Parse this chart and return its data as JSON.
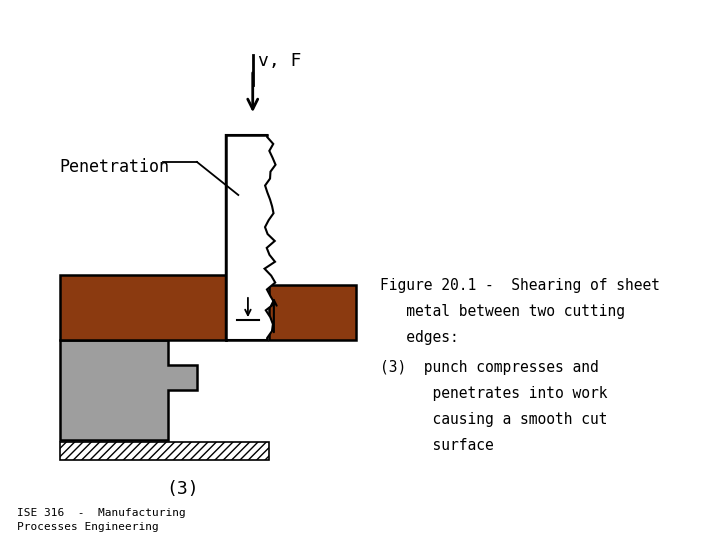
{
  "bg_color": "#ffffff",
  "brown_color": "#8B3A10",
  "gray_color": "#9E9E9E",
  "black_color": "#000000",
  "white_color": "#ffffff",
  "title_line1": "Figure 20.1 -  Shearing of sheet",
  "title_line2": "   metal between two cutting",
  "title_line3": "   edges:",
  "caption_line1": "(3)  punch compresses and",
  "caption_line2": "      penetrates into work",
  "caption_line3": "      causing a smooth cut",
  "caption_line4": "      surface",
  "label_penetration": "Penetration",
  "label_vF": "v, F",
  "label_3": "(3)",
  "footer_text": "ISE 316  -  Manufacturing\nProcesses Engineering",
  "figure_width": 7.2,
  "figure_height": 5.4,
  "dpi": 100
}
